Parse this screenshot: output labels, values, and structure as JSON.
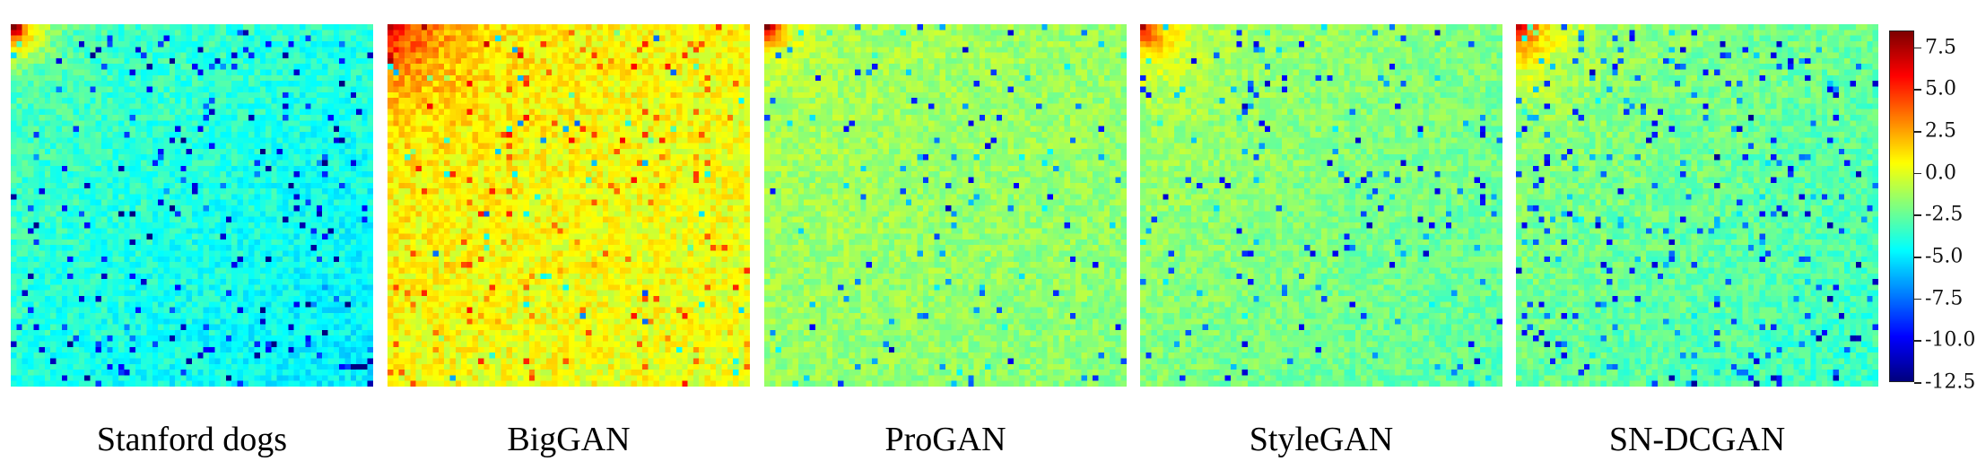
{
  "chart_data": [
    {
      "type": "heatmap",
      "title": "Stanford dogs",
      "grid_size": [
        64,
        64
      ],
      "value_range": [
        -12.5,
        8.5
      ],
      "mean_value": -4.0,
      "pattern": "bright low-frequency top-left corner, darker toward bottom-right with scattered dark blue cells"
    },
    {
      "type": "heatmap",
      "title": "BigGAN",
      "grid_size": [
        64,
        64
      ],
      "value_range": [
        -12.5,
        8.5
      ],
      "mean_value": 0.5,
      "pattern": "mostly yellow with orange patches, warm top-left region"
    },
    {
      "type": "heatmap",
      "title": "ProGAN",
      "grid_size": [
        64,
        64
      ],
      "value_range": [
        -12.5,
        8.5
      ],
      "mean_value": -1.5,
      "pattern": "yellow-green field with hot top-left corner and sparse blue cells"
    },
    {
      "type": "heatmap",
      "title": "StyleGAN",
      "grid_size": [
        64,
        64
      ],
      "value_range": [
        -12.5,
        8.5
      ],
      "mean_value": -2.0,
      "pattern": "orange top-left corner, green-cyan elsewhere with scattered blue cells"
    },
    {
      "type": "heatmap",
      "title": "SN-DCGAN",
      "grid_size": [
        64,
        64
      ],
      "value_range": [
        -12.5,
        8.5
      ],
      "mean_value": -2.5,
      "pattern": "orange top rows, cyan with many blue cells toward bottom-right"
    }
  ],
  "colorbar": {
    "colormap": "jet",
    "range": [
      -12.5,
      8.5
    ],
    "ticks": [
      "7.5",
      "5.0",
      "2.5",
      "0.0",
      "-2.5",
      "-5.0",
      "-7.5",
      "-10.0",
      "-12.5"
    ]
  }
}
